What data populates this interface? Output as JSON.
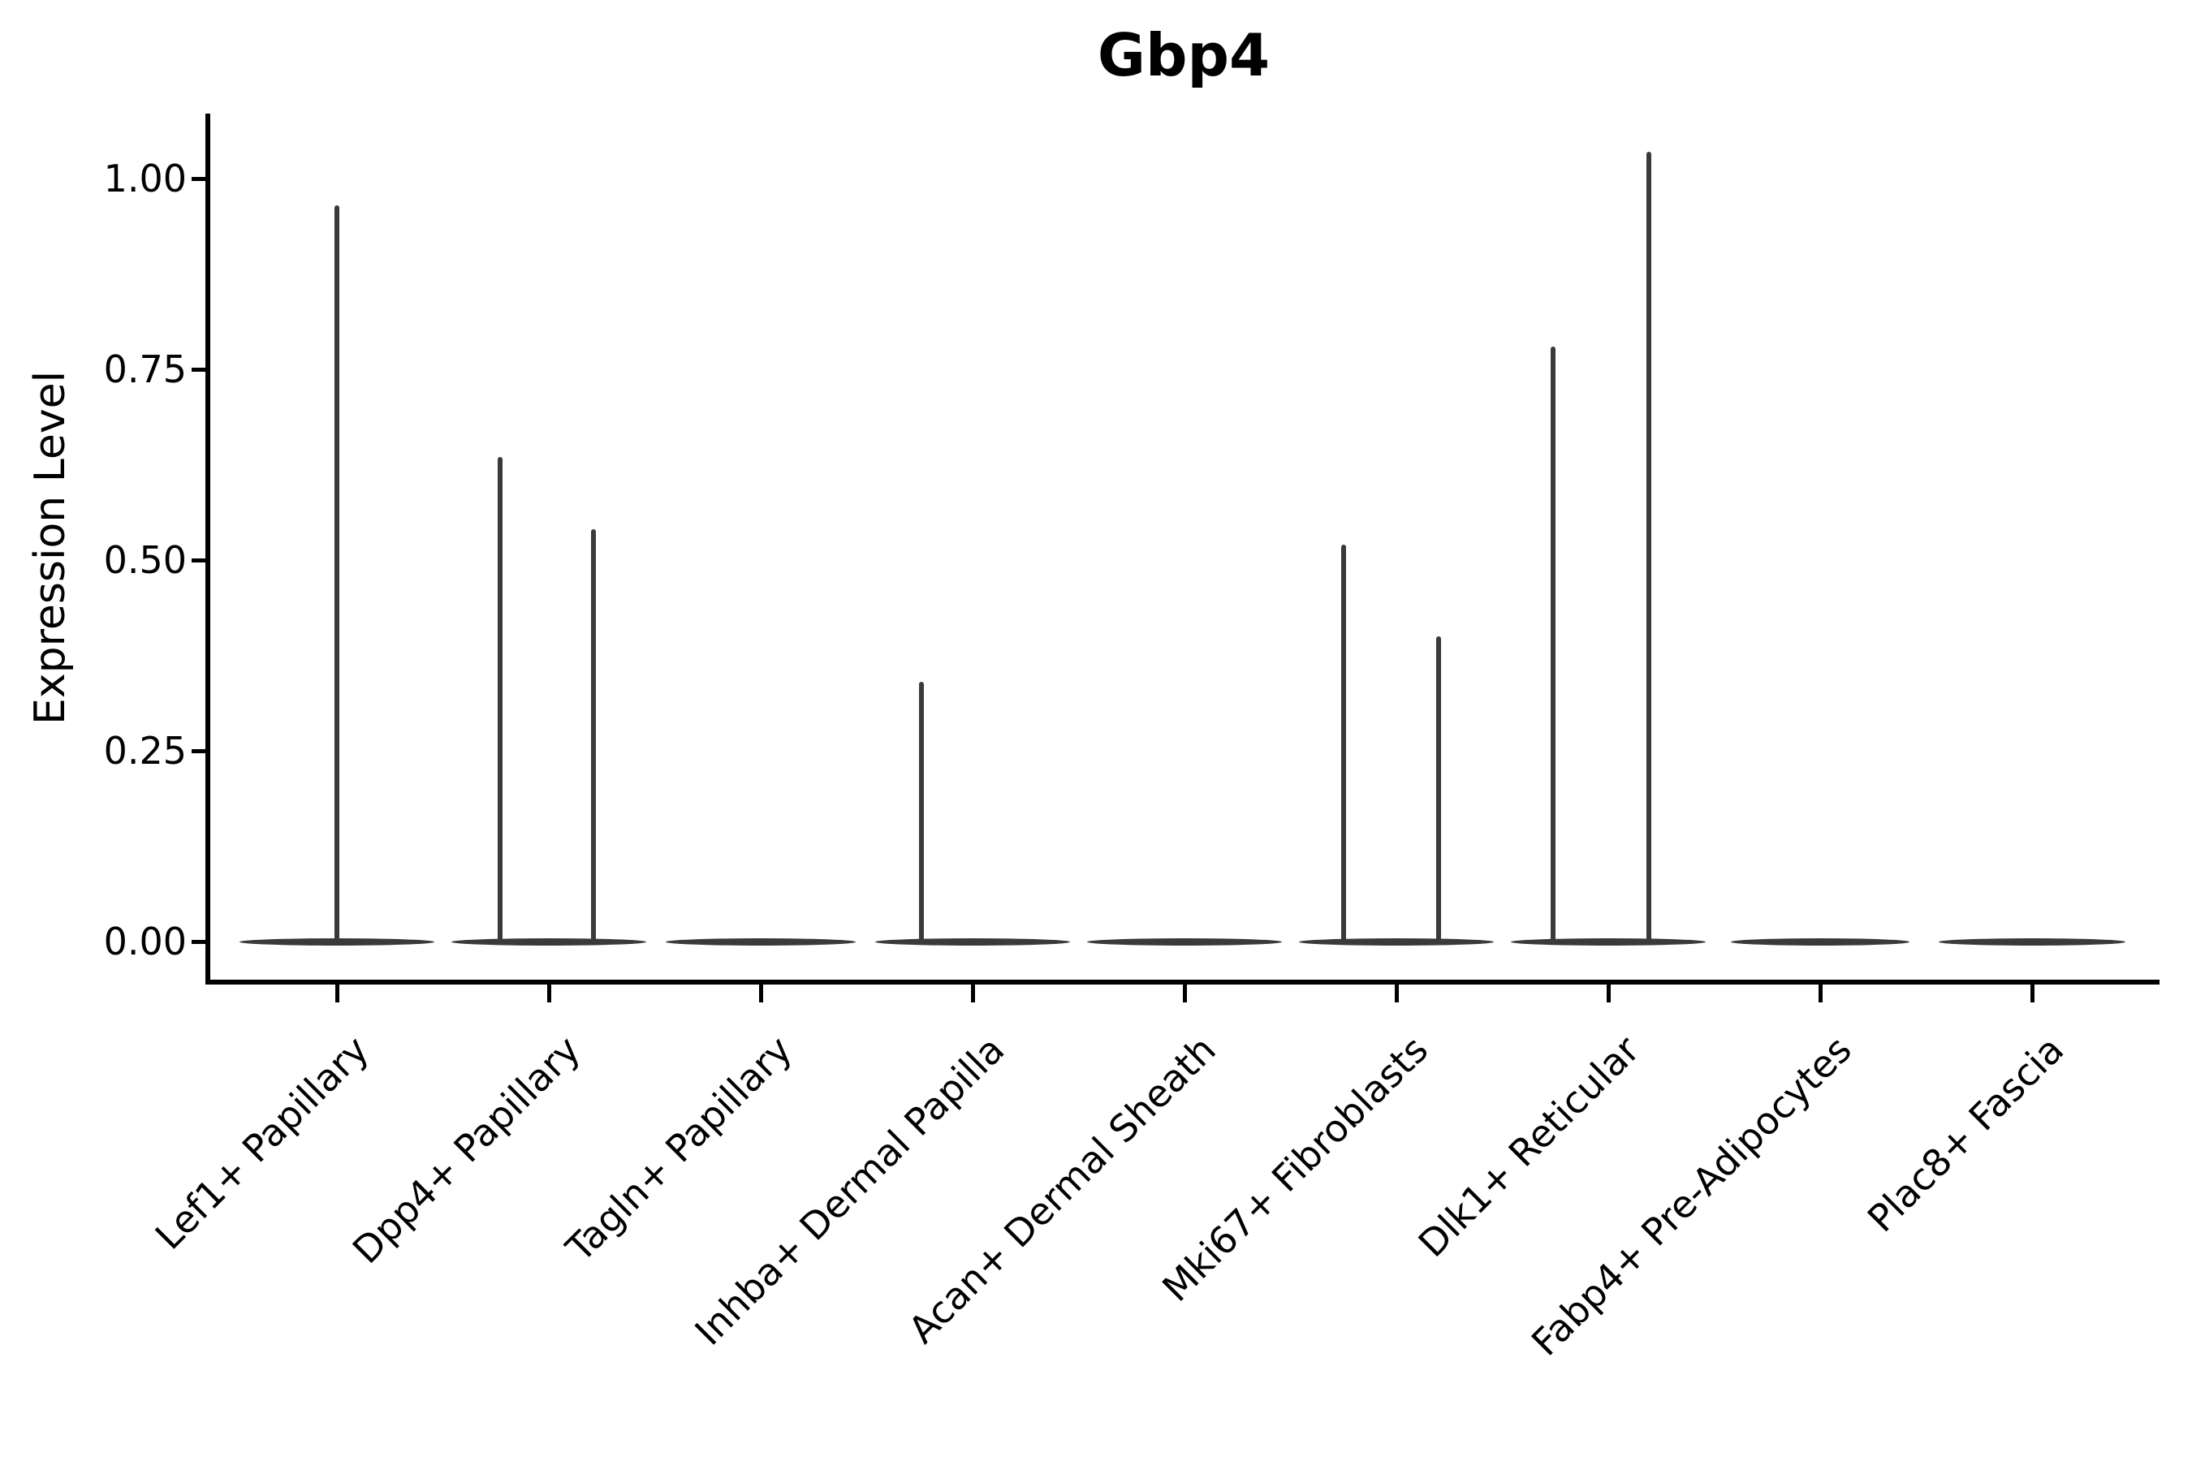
{
  "chart_data": {
    "type": "violin",
    "title": "Gbp4",
    "ylabel": "Expression Level",
    "xlabel": "",
    "grid": false,
    "legend": null,
    "ylim": [
      -0.05,
      1.09
    ],
    "yticks": [
      {
        "value": 0.0,
        "label": "0.00"
      },
      {
        "value": 0.25,
        "label": "0.25"
      },
      {
        "value": 0.5,
        "label": "0.50"
      },
      {
        "value": 0.75,
        "label": "0.75"
      },
      {
        "value": 1.0,
        "label": "1.00"
      }
    ],
    "categories": [
      "Lef1+ Papillary",
      "Dpp4+ Papillary",
      "Tagln+ Papillary",
      "Inhba+ Dermal Papilla",
      "Acan+ Dermal Sheath",
      "Mki67+ Fibroblasts",
      "Dlk1+ Reticular",
      "Fabp4+ Pre-Adipocytes",
      "Plac8+ Fascia"
    ],
    "violins": [
      {
        "category": "Lef1+ Papillary",
        "body_center": 0,
        "body_halfwidth": 0.46,
        "spikes": [
          {
            "dx": 0.0,
            "max_expression": 0.965
          }
        ]
      },
      {
        "category": "Dpp4+ Papillary",
        "body_center": 0,
        "body_halfwidth": 0.46,
        "spikes": [
          {
            "dx": -0.23,
            "max_expression": 0.635
          },
          {
            "dx": 0.21,
            "max_expression": 0.54
          }
        ]
      },
      {
        "category": "Tagln+ Papillary",
        "body_center": 0,
        "body_halfwidth": 0.45,
        "spikes": []
      },
      {
        "category": "Inhba+ Dermal Papilla",
        "body_center": 0,
        "body_halfwidth": 0.46,
        "spikes": [
          {
            "dx": -0.24,
            "max_expression": 0.34
          }
        ]
      },
      {
        "category": "Acan+ Dermal Sheath",
        "body_center": 0,
        "body_halfwidth": 0.46,
        "spikes": []
      },
      {
        "category": "Mki67+ Fibroblasts",
        "body_center": 0,
        "body_halfwidth": 0.46,
        "spikes": [
          {
            "dx": -0.25,
            "max_expression": 0.52
          },
          {
            "dx": 0.2,
            "max_expression": 0.4
          }
        ]
      },
      {
        "category": "Dlk1+ Reticular",
        "body_center": 0,
        "body_halfwidth": 0.46,
        "spikes": [
          {
            "dx": -0.26,
            "max_expression": 0.78
          },
          {
            "dx": 0.19,
            "max_expression": 1.035
          }
        ]
      },
      {
        "category": "Fabp4+ Pre-Adipocytes",
        "body_center": 0,
        "body_halfwidth": 0.42,
        "spikes": []
      },
      {
        "category": "Plac8+ Fascia",
        "body_center": 0,
        "body_halfwidth": 0.44,
        "spikes": []
      }
    ],
    "colors": {
      "violin": "#3a3a3a",
      "axis": "#000000",
      "text": "#000000",
      "background": "#ffffff"
    }
  }
}
